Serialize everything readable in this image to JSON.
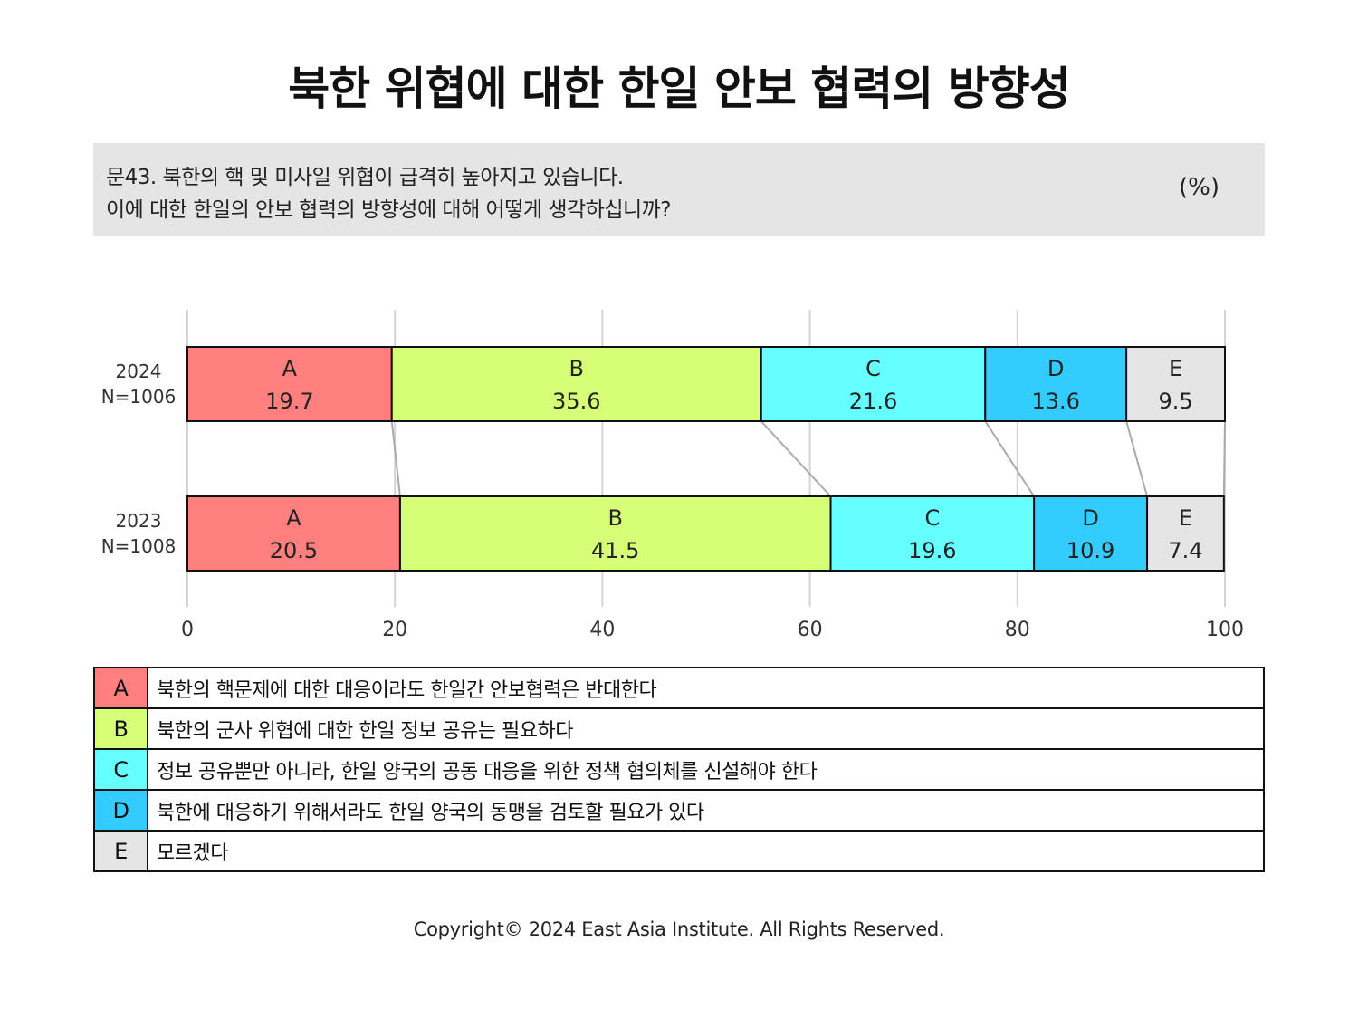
{
  "title": "북한 위협에 대한 한일 안보 협력의 방향성",
  "question": {
    "line1": "문43. 북한의 핵 및 미사일 위협이 급격히 높아지고 있습니다.",
    "line2": "이에 대한 한일의 안보 협력의 방향성에 대해 어떻게 생각하십니까?",
    "unit": "(%)"
  },
  "chart_data": {
    "type": "bar",
    "orientation": "horizontal",
    "stacked": true,
    "categories": [
      "2024\nN=1006",
      "2023\nN=1008"
    ],
    "category_lines": [
      [
        "2024",
        "N=1006"
      ],
      [
        "2023",
        "N=1008"
      ]
    ],
    "series": [
      {
        "name": "A",
        "values": [
          19.7,
          20.5
        ],
        "color": "#ff7f7f"
      },
      {
        "name": "B",
        "values": [
          35.6,
          41.5
        ],
        "color": "#d7fe77"
      },
      {
        "name": "C",
        "values": [
          21.6,
          19.6
        ],
        "color": "#66ffff"
      },
      {
        "name": "D",
        "values": [
          13.6,
          10.9
        ],
        "color": "#33ccff"
      },
      {
        "name": "E",
        "values": [
          9.5,
          7.4
        ],
        "color": "#e6e5e6"
      }
    ],
    "x_ticks": [
      0,
      20,
      40,
      60,
      80,
      100
    ],
    "xlim": [
      0,
      100
    ],
    "grid": true
  },
  "legend": [
    {
      "key": "A",
      "text": "북한의 핵문제에 대한 대응이라도 한일간 안보협력은 반대한다",
      "color": "#ff7f7f"
    },
    {
      "key": "B",
      "text": "북한의 군사 위협에 대한 한일 정보 공유는 필요하다",
      "color": "#d7fe77"
    },
    {
      "key": "C",
      "text": "정보 공유뿐만 아니라, 한일 양국의 공동 대응을 위한 정책 협의체를 신설해야 한다",
      "color": "#66ffff"
    },
    {
      "key": "D",
      "text": "북한에 대응하기 위해서라도 한일 양국의 동맹을 검토할 필요가 있다",
      "color": "#33ccff"
    },
    {
      "key": "E",
      "text": "모르겠다",
      "color": "#e6e5e6"
    }
  ],
  "copyright": "Copyright© 2024 East Asia Institute. All Rights Reserved."
}
